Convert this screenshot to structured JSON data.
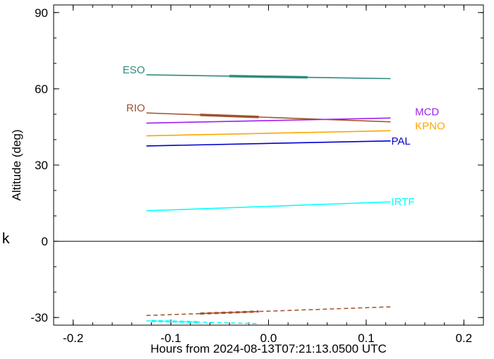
{
  "side_label": "k",
  "chart_data": {
    "type": "line",
    "title": "",
    "xlabel": "Hours from 2024-08-13T07:21:13.0500 UTC",
    "ylabel": "Altitude (deg)",
    "xlim": [
      -0.22,
      0.22
    ],
    "ylim": [
      -33,
      93
    ],
    "xticks": [
      -0.2,
      -0.1,
      0.0,
      0.1,
      0.2
    ],
    "xtick_labels": [
      "-0.2",
      "-0.1",
      "0.0",
      "0.1",
      "0.2"
    ],
    "yticks": [
      -30,
      0,
      30,
      60,
      90
    ],
    "ytick_labels": [
      "-30",
      "0",
      "30",
      "60",
      "90"
    ],
    "zero_line": 0,
    "grid": false,
    "series": [
      {
        "name": "ESO",
        "color": "#2e8b7e",
        "x": [
          -0.125,
          0.125
        ],
        "y": [
          65.5,
          64.0
        ],
        "bold_x": [
          -0.04,
          0.04
        ],
        "label_side": "left"
      },
      {
        "name": "RIO",
        "color": "#a0522d",
        "x": [
          -0.125,
          0.125
        ],
        "y": [
          50.5,
          47.0
        ],
        "bold_x": [
          -0.07,
          -0.01
        ],
        "label_side": "left"
      },
      {
        "name": "MCD",
        "color": "#a020f0",
        "x": [
          -0.125,
          0.125
        ],
        "y": [
          46.5,
          48.5
        ],
        "label_side": "right"
      },
      {
        "name": "KPNO",
        "color": "#ffa500",
        "x": [
          -0.125,
          0.125
        ],
        "y": [
          41.5,
          43.5
        ],
        "label_side": "right"
      },
      {
        "name": "PAL",
        "color": "#0000cd",
        "x": [
          -0.125,
          0.125
        ],
        "y": [
          37.5,
          39.5
        ],
        "label_side": "right"
      },
      {
        "name": "IRTF",
        "color": "#00ffff",
        "x": [
          -0.125,
          0.125
        ],
        "y": [
          12.0,
          15.5
        ],
        "label_side": "right"
      }
    ],
    "below_horizon": [
      {
        "color": "#a0522d",
        "x": [
          -0.125,
          0.125
        ],
        "y": [
          -29.2,
          -25.8
        ],
        "bold_x": [
          -0.07,
          -0.01
        ]
      },
      {
        "color": "#00ffff",
        "x": [
          -0.125,
          -0.01
        ],
        "y": [
          -31.3,
          -32.4
        ],
        "bold_x": [
          -0.12,
          -0.07
        ]
      }
    ]
  }
}
